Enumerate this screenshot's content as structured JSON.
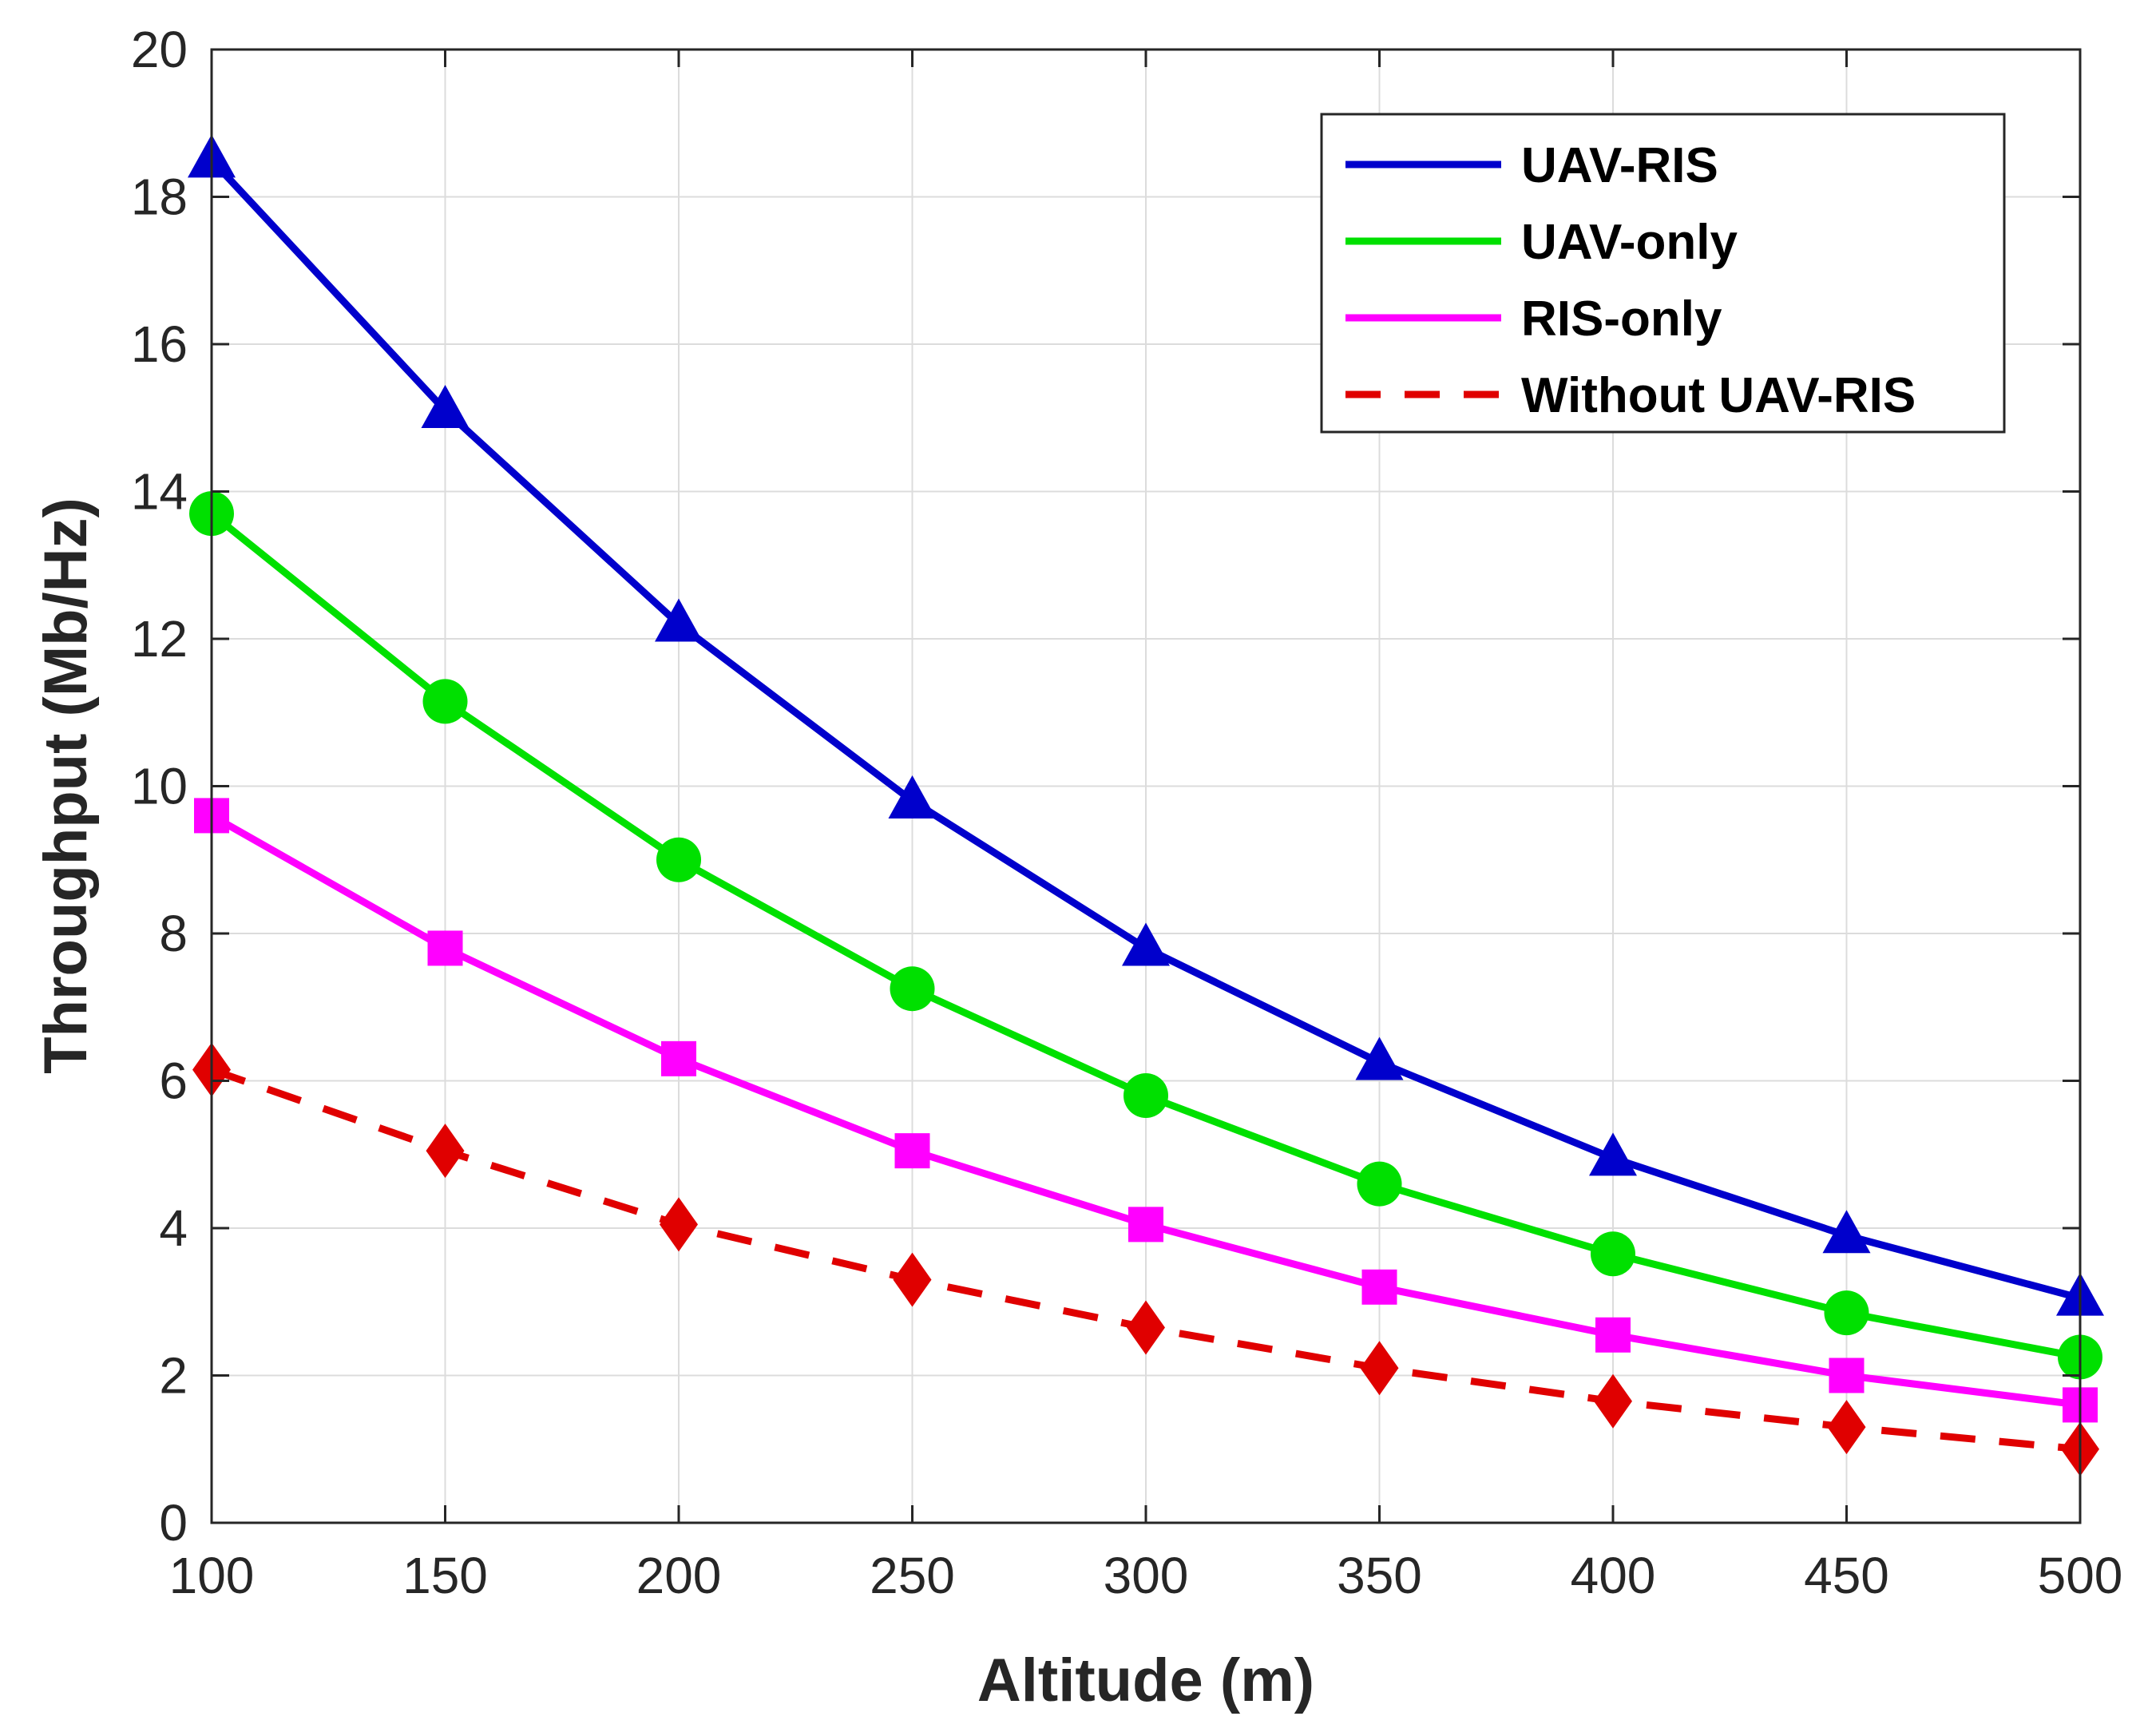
{
  "chart_data": {
    "type": "line",
    "title": "",
    "xlabel": "Altitude (m)",
    "ylabel": "Throughput (Mb/Hz)",
    "xlim": [
      100,
      500
    ],
    "ylim": [
      0,
      20
    ],
    "xticks": [
      100,
      150,
      200,
      250,
      300,
      350,
      400,
      450,
      500
    ],
    "yticks": [
      0,
      2,
      4,
      6,
      8,
      10,
      12,
      14,
      16,
      18,
      20
    ],
    "grid": true,
    "legend_position": "top-right",
    "x": [
      100,
      150,
      200,
      250,
      300,
      350,
      400,
      450,
      500
    ],
    "series": [
      {
        "name": "UAV-RIS",
        "color": "#0000CC",
        "marker": "triangle",
        "dashed": false,
        "values": [
          18.5,
          15.1,
          12.2,
          9.8,
          7.8,
          6.25,
          4.95,
          3.9,
          3.05
        ]
      },
      {
        "name": "UAV-only",
        "color": "#00E000",
        "marker": "circle",
        "dashed": false,
        "values": [
          13.7,
          11.15,
          9.0,
          7.25,
          5.8,
          4.6,
          3.65,
          2.85,
          2.25
        ]
      },
      {
        "name": "RIS-only",
        "color": "#FF00FF",
        "marker": "square",
        "dashed": false,
        "values": [
          9.6,
          7.8,
          6.3,
          5.05,
          4.05,
          3.2,
          2.55,
          2.0,
          1.6
        ]
      },
      {
        "name": "Without UAV-RIS",
        "color": "#E00000",
        "marker": "diamond",
        "dashed": true,
        "values": [
          6.15,
          5.05,
          4.05,
          3.3,
          2.65,
          2.1,
          1.65,
          1.3,
          1.0
        ]
      }
    ]
  }
}
